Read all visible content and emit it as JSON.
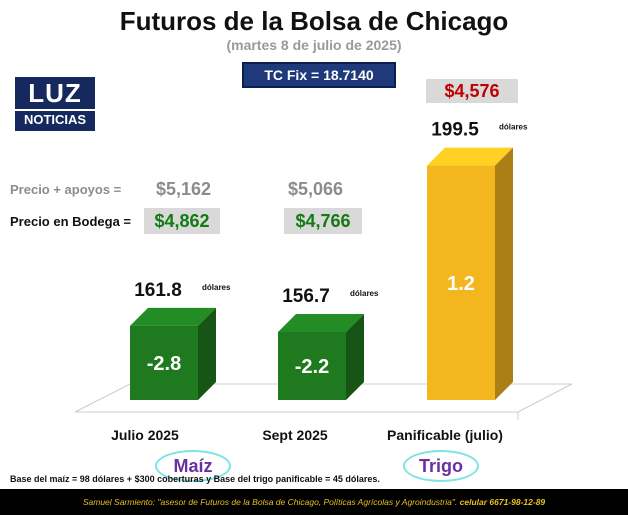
{
  "header": {
    "title": "Futuros de la Bolsa de Chicago",
    "subtitle": "(martes 8 de julio de 2025)",
    "tc_fix": "TC Fix = 18.7140"
  },
  "logo": {
    "line1": "LUZ",
    "line2": "NOTICIAS"
  },
  "prices": {
    "apoyos_label": "Precio + apoyos  =",
    "bodega_label": "Precio en Bodega =",
    "julio_apoyos": "$5,162",
    "sept_apoyos": "$5,066",
    "julio_bodega": "$4,862",
    "sept_bodega": "$4,766",
    "trigo_price": "$4,576"
  },
  "chart_data": {
    "type": "bar",
    "categories": [
      "Julio 2025",
      "Sept 2025",
      "Panificable (julio)"
    ],
    "values": [
      161.8,
      156.7,
      199.5
    ],
    "value_labels": [
      "161.8",
      "156.7",
      "199.5"
    ],
    "unit_label": "dólares",
    "changes": [
      "-2.8",
      "-2.2",
      "1.2"
    ],
    "colors": [
      "#1f7a1f",
      "#1f7a1f",
      "#f4b61e"
    ],
    "groups": [
      "Maíz",
      "Trigo"
    ]
  },
  "footnote": "Base del maíz = 98 dólares + $300 coberturas y Base del trigo panificable = 45 dólares.",
  "footer": {
    "text": "Samuel Sarmiento: \"asesor de Futuros de la Bolsa de Chicago, Políticas Agrícolas y Agroindustria\".",
    "phone": "celular 6671-98-12-89"
  }
}
